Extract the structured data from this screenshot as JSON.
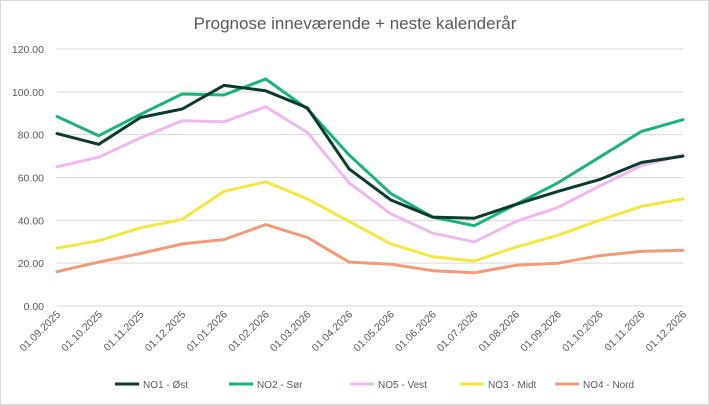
{
  "chart_data": {
    "type": "line",
    "title": "Prognose inneværende + neste kalenderår",
    "xlabel": "",
    "ylabel": "",
    "categories": [
      "01.09.2025",
      "01.10.2025",
      "01.11.2025",
      "01.12.2025",
      "01.01.2026",
      "01.02.2026",
      "01.03.2026",
      "01.04.2026",
      "01.05.2026",
      "01.06.2026",
      "01.07.2026",
      "01.08.2026",
      "01.09.2026",
      "01.10.2026",
      "01.11.2026",
      "01.12.2026"
    ],
    "ylim": [
      0,
      120
    ],
    "yticks": [
      "0.00",
      "20.00",
      "40.00",
      "60.00",
      "80.00",
      "100.00",
      "120.00"
    ],
    "grid": true,
    "legend_position": "bottom",
    "series": [
      {
        "name": "NO1 - Øst",
        "color": "#0b3b2e",
        "values": [
          80.5,
          75.5,
          88.0,
          92.0,
          103.0,
          100.5,
          92.5,
          64.0,
          49.5,
          41.5,
          41.0,
          47.5,
          53.5,
          59.0,
          67.0,
          70.0
        ]
      },
      {
        "name": "NO2 - Sør",
        "color": "#1ab37a",
        "values": [
          88.5,
          79.5,
          89.5,
          99.0,
          98.5,
          106.0,
          92.0,
          70.5,
          52.5,
          41.5,
          37.5,
          47.5,
          57.5,
          69.5,
          81.5,
          87.0
        ]
      },
      {
        "name": "NO5 - Vest",
        "color": "#f0b8f0",
        "values": [
          65.0,
          69.5,
          78.5,
          86.5,
          86.0,
          93.0,
          81.0,
          57.5,
          43.0,
          34.0,
          30.0,
          39.5,
          46.0,
          56.0,
          65.5,
          70.5
        ]
      },
      {
        "name": "NO3 - Midt",
        "color": "#f5e642",
        "values": [
          27.0,
          30.5,
          36.5,
          40.5,
          53.5,
          58.0,
          50.0,
          39.5,
          29.0,
          23.0,
          21.0,
          27.5,
          33.0,
          40.0,
          46.5,
          50.0
        ]
      },
      {
        "name": "NO4 - Nord",
        "color": "#f29b78",
        "values": [
          16.0,
          20.5,
          24.5,
          29.0,
          31.0,
          38.0,
          32.0,
          20.5,
          19.5,
          16.5,
          15.5,
          19.0,
          20.0,
          23.5,
          25.5,
          26.0
        ]
      }
    ]
  }
}
